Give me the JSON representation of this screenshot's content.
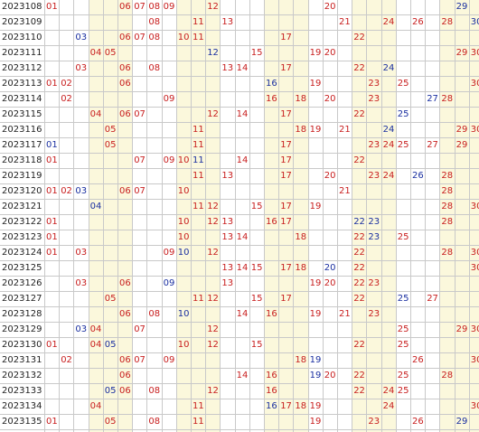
{
  "colors": {
    "red": "#c81e1e",
    "blue": "#1a2fa0"
  },
  "rows": [
    {
      "period": "2023108",
      "red": [
        "01",
        "06",
        "07",
        "08",
        "09",
        "12",
        "20"
      ],
      "blue": [
        "29"
      ]
    },
    {
      "period": "2023109",
      "red": [
        "08",
        "11",
        "13",
        "21",
        "24",
        "26",
        "28"
      ],
      "blue": [
        "30"
      ]
    },
    {
      "period": "2023110",
      "red": [
        "06",
        "07",
        "08",
        "10",
        "11",
        "17",
        "22"
      ],
      "blue": [
        "03"
      ]
    },
    {
      "period": "2023111",
      "red": [
        "04",
        "05",
        "15",
        "19",
        "20",
        "29",
        "30"
      ],
      "blue": [
        "12"
      ]
    },
    {
      "period": "2023112",
      "red": [
        "03",
        "06",
        "08",
        "13",
        "14",
        "17",
        "22"
      ],
      "blue": [
        "24"
      ]
    },
    {
      "period": "2023113",
      "red": [
        "01",
        "02",
        "06",
        "19",
        "23",
        "25",
        "30"
      ],
      "blue": [
        "16"
      ]
    },
    {
      "period": "2023114",
      "red": [
        "02",
        "09",
        "16",
        "18",
        "20",
        "23",
        "28"
      ],
      "blue": [
        "27"
      ]
    },
    {
      "period": "2023115",
      "red": [
        "04",
        "06",
        "07",
        "12",
        "14",
        "17",
        "22"
      ],
      "blue": [
        "25"
      ]
    },
    {
      "period": "2023116",
      "red": [
        "05",
        "11",
        "18",
        "19",
        "21",
        "29",
        "30"
      ],
      "blue": [
        "24"
      ]
    },
    {
      "period": "2023117",
      "red": [
        "05",
        "11",
        "17",
        "23",
        "24",
        "25",
        "27",
        "29"
      ],
      "blue": [
        "01"
      ]
    },
    {
      "period": "2023118",
      "red": [
        "01",
        "07",
        "09",
        "10",
        "14",
        "17",
        "22"
      ],
      "blue": [
        "11"
      ]
    },
    {
      "period": "2023119",
      "red": [
        "11",
        "13",
        "17",
        "20",
        "23",
        "24",
        "28"
      ],
      "blue": [
        "26"
      ]
    },
    {
      "period": "2023120",
      "red": [
        "01",
        "02",
        "06",
        "07",
        "10",
        "21",
        "28"
      ],
      "blue": [
        "03"
      ]
    },
    {
      "period": "2023121",
      "red": [
        "11",
        "12",
        "15",
        "17",
        "19",
        "28",
        "30"
      ],
      "blue": [
        "04"
      ]
    },
    {
      "period": "2023122",
      "red": [
        "01",
        "10",
        "12",
        "13",
        "16",
        "17",
        "28"
      ],
      "blue": [
        "22",
        "23"
      ]
    },
    {
      "period": "2023123",
      "red": [
        "01",
        "10",
        "13",
        "14",
        "18",
        "22",
        "25"
      ],
      "blue": [
        "23"
      ]
    },
    {
      "period": "2023124",
      "red": [
        "01",
        "03",
        "09",
        "12",
        "22",
        "28",
        "30"
      ],
      "blue": [
        "10"
      ]
    },
    {
      "period": "2023125",
      "red": [
        "13",
        "14",
        "15",
        "17",
        "18",
        "22",
        "30"
      ],
      "blue": [
        "20"
      ]
    },
    {
      "period": "2023126",
      "red": [
        "03",
        "06",
        "13",
        "19",
        "20",
        "22",
        "23"
      ],
      "blue": [
        "09"
      ]
    },
    {
      "period": "2023127",
      "red": [
        "05",
        "11",
        "12",
        "15",
        "17",
        "22",
        "27"
      ],
      "blue": [
        "25"
      ]
    },
    {
      "period": "2023128",
      "red": [
        "06",
        "08",
        "14",
        "16",
        "19",
        "21",
        "23"
      ],
      "blue": [
        "10"
      ]
    },
    {
      "period": "2023129",
      "red": [
        "04",
        "07",
        "12",
        "25",
        "29",
        "30"
      ],
      "blue": [
        "03"
      ]
    },
    {
      "period": "2023130",
      "red": [
        "01",
        "04",
        "10",
        "12",
        "15",
        "22",
        "25"
      ],
      "blue": [
        "05"
      ]
    },
    {
      "period": "2023131",
      "red": [
        "02",
        "06",
        "07",
        "09",
        "18",
        "26",
        "30"
      ],
      "blue": [
        "19"
      ]
    },
    {
      "period": "2023132",
      "red": [
        "06",
        "14",
        "16",
        "20",
        "22",
        "25",
        "28"
      ],
      "blue": [
        "19"
      ]
    },
    {
      "period": "2023133",
      "red": [
        "06",
        "08",
        "12",
        "16",
        "22",
        "24",
        "25"
      ],
      "blue": [
        "05"
      ]
    },
    {
      "period": "2023134",
      "red": [
        "04",
        "11",
        "17",
        "18",
        "19",
        "24",
        "30"
      ],
      "blue": [
        "16"
      ]
    },
    {
      "period": "2023135",
      "red": [
        "01",
        "05",
        "08",
        "11",
        "19",
        "23",
        "26"
      ],
      "blue": [
        "29"
      ]
    }
  ]
}
